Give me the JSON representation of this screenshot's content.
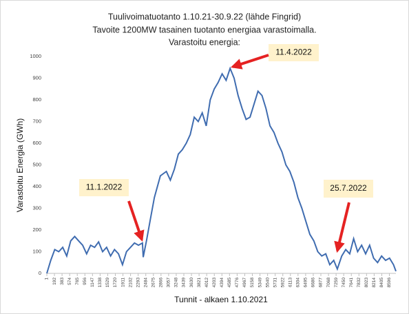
{
  "chart_data": {
    "type": "line",
    "title_lines": [
      "Tuulivoimatuotanto 1.10.21-30.9.22 (lähde Fingrid)",
      "Tavoite 1200MW tasainen tuotanto energiaa varastoimalla.",
      "Varastoitu energia:"
    ],
    "x_label": "Tunnit - alkaen 1.10.2021",
    "y_label": "Varastoitu Energia (GWh)",
    "xlim": [
      1,
      8760
    ],
    "xticks": [
      1,
      192,
      383,
      574,
      765,
      956,
      1147,
      1338,
      1529,
      1720,
      1911,
      2102,
      2293,
      2484,
      2675,
      2866,
      3057,
      3248,
      3439,
      3630,
      3821,
      4012,
      4203,
      4394,
      4585,
      4776,
      4967,
      5158,
      5349,
      5540,
      5731,
      5922,
      6113,
      6304,
      6495,
      6686,
      6877,
      7068,
      7259,
      7450,
      7641,
      7832,
      8023,
      8214,
      8405,
      8596
    ],
    "ylim": [
      0,
      1000
    ],
    "yticks": [
      0,
      100,
      200,
      300,
      400,
      500,
      600,
      700,
      800,
      900,
      1000
    ],
    "grid": false,
    "series": [
      {
        "name": "Varastoitu energia",
        "color": "#3f6cb0",
        "x": [
          1,
          100,
          200,
          300,
          400,
          500,
          600,
          700,
          800,
          900,
          1000,
          1100,
          1200,
          1300,
          1400,
          1500,
          1600,
          1700,
          1800,
          1900,
          2000,
          2100,
          2200,
          2300,
          2400,
          2420,
          2500,
          2600,
          2700,
          2850,
          3000,
          3100,
          3200,
          3300,
          3400,
          3500,
          3600,
          3700,
          3800,
          3900,
          4000,
          4100,
          4200,
          4300,
          4400,
          4500,
          4600,
          4700,
          4800,
          4900,
          5000,
          5100,
          5200,
          5300,
          5400,
          5500,
          5600,
          5700,
          5800,
          5900,
          6000,
          6100,
          6200,
          6300,
          6400,
          6500,
          6600,
          6700,
          6800,
          6900,
          7000,
          7100,
          7200,
          7290,
          7400,
          7500,
          7600,
          7700,
          7800,
          7900,
          8000,
          8100,
          8200,
          8300,
          8400,
          8500,
          8600,
          8700,
          8760
        ],
        "values": [
          0,
          60,
          110,
          100,
          120,
          80,
          150,
          170,
          150,
          130,
          90,
          130,
          120,
          145,
          100,
          120,
          80,
          110,
          90,
          40,
          100,
          120,
          140,
          130,
          140,
          75,
          150,
          250,
          350,
          450,
          470,
          430,
          480,
          550,
          570,
          600,
          640,
          720,
          700,
          740,
          680,
          800,
          850,
          880,
          920,
          890,
          945,
          900,
          820,
          760,
          710,
          720,
          780,
          840,
          820,
          760,
          680,
          650,
          600,
          560,
          500,
          470,
          420,
          350,
          300,
          240,
          180,
          150,
          100,
          80,
          90,
          40,
          60,
          20,
          80,
          110,
          90,
          160,
          100,
          130,
          90,
          130,
          70,
          50,
          80,
          60,
          70,
          40,
          10
        ]
      }
    ],
    "annotations": [
      {
        "text": "11.4.2022"
      },
      {
        "text": "11.1.2022"
      },
      {
        "text": "25.7.2022"
      }
    ]
  }
}
